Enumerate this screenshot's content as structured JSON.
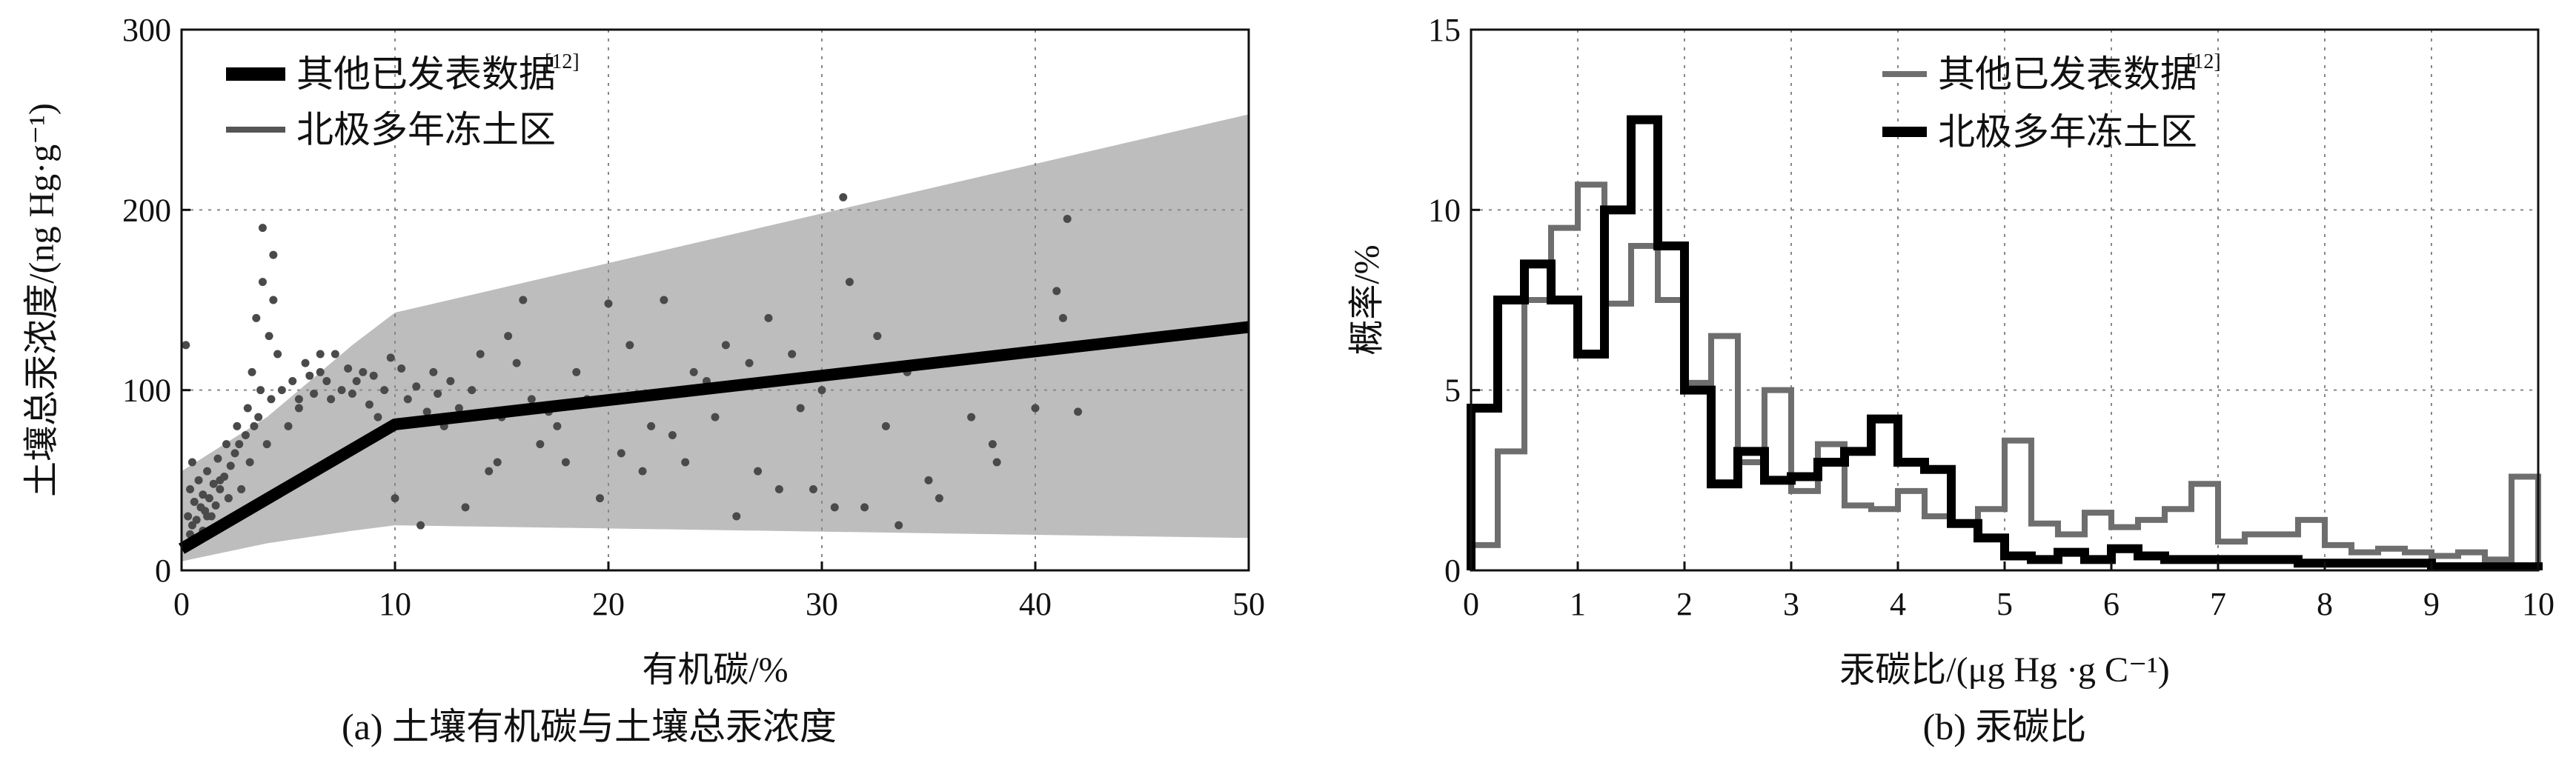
{
  "chart_data": [
    {
      "type": "scatter",
      "caption": "(a) 土壤有机碳与土壤总汞浓度",
      "xlabel": "有机碳/%",
      "ylabel": "土壤总汞浓度/(ng Hg·g⁻¹)",
      "xlim": [
        0,
        50
      ],
      "ylim": [
        0,
        300
      ],
      "xticks": [
        "0",
        "10",
        "20",
        "30",
        "40",
        "50"
      ],
      "yticks": [
        "0",
        "100",
        "200",
        "300"
      ],
      "grid": true,
      "legend_position": "top-left",
      "legend": [
        {
          "label": "其他已发表数据",
          "ref": "[12]",
          "style": "thick-black-line"
        },
        {
          "label": "北极多年冻土区",
          "style": "gray-line"
        }
      ],
      "band": {
        "name": "uncertainty band",
        "upper": [
          [
            0,
            55
          ],
          [
            4,
            85
          ],
          [
            8,
            125
          ],
          [
            10,
            143
          ],
          [
            50,
            253
          ]
        ],
        "lower": [
          [
            0,
            5
          ],
          [
            4,
            15
          ],
          [
            8,
            22
          ],
          [
            10,
            25
          ],
          [
            50,
            18
          ]
        ]
      },
      "fit_line": {
        "name": "其他已发表数据",
        "x": [
          0,
          10,
          50
        ],
        "y": [
          12,
          81,
          135
        ]
      },
      "points": {
        "name": "北极多年冻土区",
        "x": [
          0.2,
          0.3,
          0.4,
          0.5,
          0.5,
          0.6,
          0.7,
          0.8,
          0.9,
          1.0,
          1.0,
          1.1,
          1.2,
          1.3,
          1.4,
          1.5,
          1.6,
          1.7,
          1.8,
          2.0,
          2.1,
          2.2,
          2.3,
          2.5,
          2.6,
          2.8,
          3.0,
          3.1,
          3.2,
          3.3,
          3.5,
          3.6,
          3.7,
          3.8,
          4.0,
          4.1,
          4.2,
          4.3,
          4.5,
          4.7,
          5.0,
          5.2,
          5.5,
          5.8,
          6.0,
          6.2,
          6.5,
          6.8,
          7.0,
          7.2,
          7.5,
          7.8,
          8.0,
          8.2,
          8.5,
          8.8,
          9.0,
          9.2,
          9.5,
          9.8,
          10.0,
          10.3,
          10.6,
          11.0,
          11.2,
          11.5,
          11.8,
          12.0,
          12.3,
          12.6,
          13.0,
          13.3,
          13.6,
          14.0,
          14.4,
          14.8,
          15.0,
          15.3,
          15.7,
          16.0,
          16.4,
          16.8,
          17.2,
          17.6,
          18.0,
          18.5,
          19.0,
          19.6,
          20.0,
          20.6,
          21.0,
          21.6,
          22.0,
          22.6,
          23.0,
          23.6,
          24.0,
          24.6,
          25.0,
          25.5,
          26.0,
          26.6,
          27.0,
          27.5,
          28.0,
          28.6,
          29.0,
          29.6,
          30.0,
          30.6,
          31.0,
          31.3,
          32.0,
          32.6,
          33.0,
          33.6,
          34.0,
          35.0,
          35.5,
          37.0,
          38.0,
          38.2,
          40.0,
          41.0,
          41.3,
          41.5,
          42.0,
          4.3,
          3.8,
          0.4,
          1.2,
          2.7,
          3.4,
          0.6,
          1.8,
          2.2,
          5.5,
          6.5
        ],
        "y": [
          125,
          30,
          45,
          25,
          60,
          38,
          28,
          50,
          35,
          22,
          42,
          33,
          55,
          40,
          30,
          48,
          36,
          62,
          45,
          52,
          70,
          40,
          58,
          65,
          80,
          45,
          75,
          90,
          60,
          110,
          140,
          85,
          100,
          160,
          70,
          130,
          95,
          150,
          120,
          100,
          80,
          105,
          90,
          115,
          108,
          98,
          110,
          105,
          95,
          120,
          100,
          112,
          98,
          105,
          110,
          92,
          108,
          85,
          100,
          118,
          40,
          112,
          95,
          102,
          25,
          88,
          110,
          98,
          80,
          105,
          90,
          35,
          100,
          120,
          55,
          60,
          85,
          130,
          115,
          150,
          95,
          70,
          88,
          80,
          60,
          110,
          95,
          40,
          148,
          65,
          125,
          55,
          80,
          150,
          75,
          60,
          110,
          105,
          85,
          125,
          30,
          115,
          55,
          140,
          45,
          120,
          90,
          45,
          100,
          35,
          207,
          160,
          35,
          130,
          80,
          25,
          110,
          50,
          40,
          85,
          70,
          60,
          90,
          155,
          140,
          195,
          88,
          175,
          190,
          20,
          30,
          70,
          80,
          15,
          50,
          40,
          95,
          120
        ],
        "color": "#4a4a4a"
      }
    },
    {
      "type": "line",
      "subtype": "step-histogram",
      "caption": "(b) 汞碳比",
      "xlabel": "汞碳比/(μg Hg ·g C⁻¹)",
      "ylabel": "概率/%",
      "xlim": [
        0,
        10
      ],
      "ylim": [
        0,
        15
      ],
      "xticks": [
        "0",
        "1",
        "2",
        "3",
        "4",
        "5",
        "6",
        "7",
        "8",
        "9",
        "10"
      ],
      "yticks": [
        "0",
        "5",
        "10",
        "15"
      ],
      "grid": true,
      "legend_position": "top-center",
      "bin_edges": [
        0,
        0.25,
        0.5,
        0.75,
        1.0,
        1.25,
        1.5,
        1.75,
        2.0,
        2.25,
        2.5,
        2.75,
        3.0,
        3.25,
        3.5,
        3.75,
        4.0,
        4.25,
        4.5,
        4.75,
        5.0,
        5.25,
        5.5,
        5.75,
        6.0,
        6.25,
        6.5,
        6.75,
        7.0,
        7.25,
        7.5,
        7.75,
        8.0,
        8.25,
        8.5,
        8.75,
        9.0,
        9.25,
        9.5,
        9.75,
        10.0
      ],
      "series": [
        {
          "name": "其他已发表数据",
          "ref": "[12]",
          "color": "#6e6e6e",
          "values": [
            0.7,
            3.3,
            7.5,
            9.5,
            10.7,
            7.4,
            9.0,
            7.5,
            5.2,
            6.5,
            3.0,
            5.0,
            2.2,
            3.5,
            1.8,
            1.7,
            2.2,
            1.5,
            1.3,
            1.7,
            3.6,
            1.3,
            1.0,
            1.6,
            1.2,
            1.4,
            1.7,
            2.4,
            0.8,
            1.0,
            1.0,
            1.4,
            0.7,
            0.5,
            0.6,
            0.5,
            0.4,
            0.5,
            0.3,
            2.6
          ]
        },
        {
          "name": "北极多年冻土区",
          "color": "#000000",
          "values": [
            4.5,
            7.5,
            8.5,
            7.5,
            6.0,
            10.0,
            12.5,
            9.0,
            5.0,
            2.4,
            3.3,
            2.5,
            2.6,
            3.0,
            3.3,
            4.2,
            3.0,
            2.8,
            1.3,
            0.9,
            0.4,
            0.3,
            0.5,
            0.3,
            0.6,
            0.4,
            0.3,
            0.3,
            0.3,
            0.3,
            0.3,
            0.2,
            0.2,
            0.2,
            0.2,
            0.2,
            0.1,
            0.1,
            0.1,
            0.1
          ]
        }
      ]
    }
  ]
}
